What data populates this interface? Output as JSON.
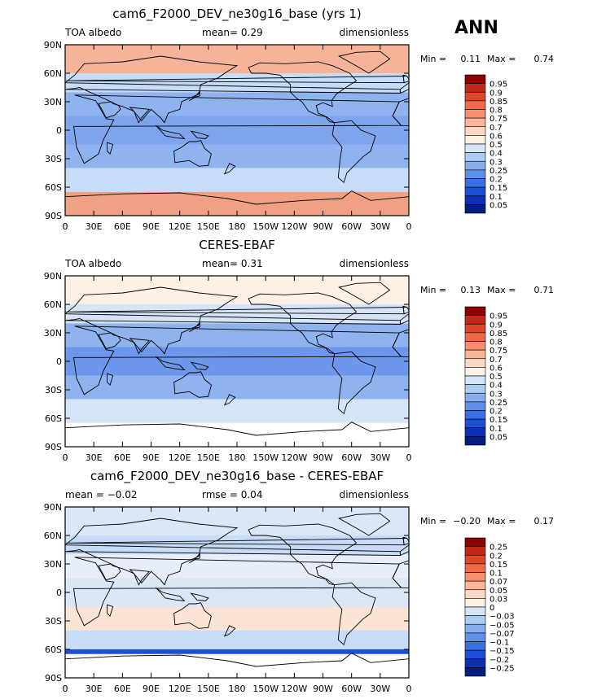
{
  "season": "ANN",
  "colors": {
    "ocean": "#dbe8f7",
    "land_outline": "#000000",
    "frame": "#000000"
  },
  "panels": [
    {
      "title": "cam6_F2000_DEV_ne30g16_base (yrs 1)",
      "left_label": "TOA albedo",
      "center_label": "mean=",
      "center_value": "0.29",
      "right_label": "dimensionless",
      "min_label": "Min =",
      "min_value": "0.11",
      "max_label": "Max =",
      "max_value": "0.74",
      "colorbar_labels": [
        "0.95",
        "0.9",
        "0.85",
        "0.8",
        "0.75",
        "0.7",
        "0.6",
        "0.5",
        "0.4",
        "0.3",
        "0.25",
        "0.2",
        "0.15",
        "0.1",
        "0.05"
      ],
      "colorbar_colors": [
        "#8b0000",
        "#c0281a",
        "#e0452a",
        "#f06a4a",
        "#f58f6f",
        "#f9b79a",
        "#fcd9c4",
        "#fdf0e4",
        "#d6e4f7",
        "#aacbf2",
        "#86aeee",
        "#5f8fe8",
        "#3a6fe2",
        "#1c4fd8",
        "#0b2fb5",
        "#021c80"
      ],
      "zones": [
        {
          "lat": [
            60,
            90
          ],
          "color": "#f5b49a"
        },
        {
          "lat": [
            40,
            60
          ],
          "color": "#c6dcf7"
        },
        {
          "lat": [
            15,
            40
          ],
          "color": "#8fb3ee"
        },
        {
          "lat": [
            -15,
            15
          ],
          "color": "#7ea5ec"
        },
        {
          "lat": [
            -40,
            -15
          ],
          "color": "#8fb3ee"
        },
        {
          "lat": [
            -65,
            -40
          ],
          "color": "#c6dcf7"
        },
        {
          "lat": [
            -90,
            -65
          ],
          "color": "#f0a084"
        }
      ]
    },
    {
      "title": "CERES-EBAF",
      "left_label": "TOA albedo",
      "center_label": "mean=",
      "center_value": "0.31",
      "right_label": "dimensionless",
      "min_label": "Min =",
      "min_value": "0.13",
      "max_label": "Max =",
      "max_value": "0.71",
      "colorbar_labels": [
        "0.95",
        "0.9",
        "0.85",
        "0.8",
        "0.75",
        "0.7",
        "0.6",
        "0.5",
        "0.4",
        "0.3",
        "0.25",
        "0.2",
        "0.15",
        "0.1",
        "0.05"
      ],
      "colorbar_colors": [
        "#8b0000",
        "#c0281a",
        "#e0452a",
        "#f06a4a",
        "#f58f6f",
        "#f9b79a",
        "#fcd9c4",
        "#fdf0e4",
        "#d6e4f7",
        "#aacbf2",
        "#86aeee",
        "#5f8fe8",
        "#3a6fe2",
        "#1c4fd8",
        "#0b2fb5",
        "#021c80"
      ],
      "zones": [
        {
          "lat": [
            60,
            90
          ],
          "color": "#fdf0e4"
        },
        {
          "lat": [
            40,
            60
          ],
          "color": "#d6e4f7"
        },
        {
          "lat": [
            15,
            40
          ],
          "color": "#8fb3ee"
        },
        {
          "lat": [
            -15,
            15
          ],
          "color": "#6d97ea"
        },
        {
          "lat": [
            -40,
            -15
          ],
          "color": "#8fb3ee"
        },
        {
          "lat": [
            -65,
            -40
          ],
          "color": "#d6e4f7"
        },
        {
          "lat": [
            -90,
            -65
          ],
          "color": "#ffffff"
        }
      ]
    },
    {
      "title": "cam6_F2000_DEV_ne30g16_base - CERES-EBAF",
      "left_label": "mean =",
      "left_value": "−0.02",
      "center_label": "rmse =",
      "center_value": "0.04",
      "right_label": "dimensionless",
      "min_label": "Min =",
      "min_value": "−0.20",
      "max_label": "Max =",
      "max_value": "0.17",
      "colorbar_labels": [
        "0.25",
        "0.2",
        "0.15",
        "0.1",
        "0.07",
        "0.05",
        "0.03",
        "0",
        "−0.03",
        "−0.05",
        "−0.07",
        "−0.1",
        "−0.15",
        "−0.2",
        "−0.25"
      ],
      "colorbar_colors": [
        "#8b0000",
        "#c0281a",
        "#e0452a",
        "#f06a4a",
        "#f58f6f",
        "#f9b79a",
        "#fcd9c4",
        "#fdf0e4",
        "#d6e4f7",
        "#aacbf2",
        "#86aeee",
        "#5f8fe8",
        "#3a6fe2",
        "#1c4fd8",
        "#0b2fb5",
        "#021c80"
      ],
      "zones": [
        {
          "lat": [
            60,
            90
          ],
          "color": "#dbe6f7"
        },
        {
          "lat": [
            40,
            60
          ],
          "color": "#c6dcf7"
        },
        {
          "lat": [
            15,
            40
          ],
          "color": "#e8eef9"
        },
        {
          "lat": [
            -15,
            15
          ],
          "color": "#dbe6f7"
        },
        {
          "lat": [
            -40,
            -15
          ],
          "color": "#fbe3d6"
        },
        {
          "lat": [
            -60,
            -40
          ],
          "color": "#c6dcf7"
        },
        {
          "lat": [
            -65,
            -60
          ],
          "color": "#1c4fd8"
        },
        {
          "lat": [
            -90,
            -65
          ],
          "color": "#ffffff"
        }
      ]
    }
  ],
  "x_ticks": [
    "0",
    "30E",
    "60E",
    "90E",
    "120E",
    "150E",
    "180",
    "150W",
    "120W",
    "90W",
    "60W",
    "30W",
    "0"
  ],
  "y_ticks": [
    "90N",
    "60N",
    "30N",
    "0",
    "30S",
    "60S",
    "90S"
  ]
}
